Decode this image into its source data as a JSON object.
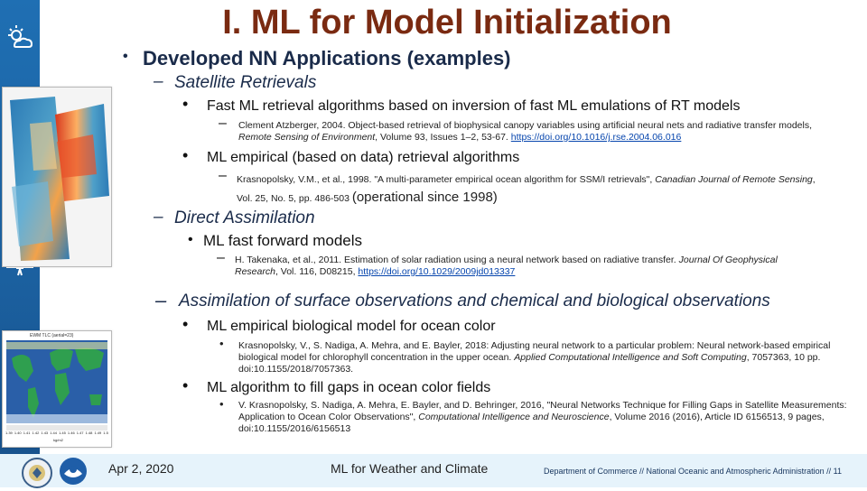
{
  "title": "I. ML for Model Initialization",
  "icons": {
    "weather": "sun-cloud-icon",
    "satellite": "satellite-icon",
    "fish": "fish-icon"
  },
  "colors": {
    "title": "#7a2a11",
    "sidebar": "#1f6fb3",
    "footer": "#e6f3fb",
    "link": "#0645ad"
  },
  "body": {
    "l1": {
      "bullet": "•",
      "text": "Developed NN Applications (examples)"
    },
    "sat": {
      "dash": "–",
      "text": "Satellite Retrievals",
      "b1": {
        "bullet": "•",
        "text": "Fast ML retrieval algorithms based on inversion of fast ML emulations of RT models",
        "ref_dash": "–",
        "ref_pre": "Clement Atzberger, 2004. Object-based retrieval of biophysical canopy variables using artificial neural nets and radiative transfer models, ",
        "ref_journal": "Remote Sensing of Environment",
        "ref_post": ", Volume 93, Issues 1–2, 53-67. ",
        "ref_link": "https://doi.org/10.1016/j.rse.2004.06.016"
      },
      "b2": {
        "bullet": "•",
        "text": "ML empirical (based on data) retrieval algorithms",
        "ref_dash": "–",
        "ref_pre": "Krasnopolsky, V.M., et al., 1998. \"A multi-parameter empirical ocean algorithm for SSM/I retrievals\", ",
        "ref_journal": "Canadian Journal of Remote Sensing",
        "ref_post": ", Vol. 25, No. 5, pp. 486-503 ",
        "ref_tail": "(operational since 1998)"
      }
    },
    "da": {
      "dash": "–",
      "text": "Direct Assimilation",
      "b1": {
        "bullet": "•",
        "text": "ML fast forward models",
        "ref_dash": "–",
        "ref_pre": "H. Takenaka, et al., 2011. Estimation of solar radiation using a neural network based on radiative transfer. ",
        "ref_journal": "Journal Of Geophysical Research",
        "ref_post": ", Vol. 116, D08215, ",
        "ref_link": "https://doi.org/10.1029/2009jd013337"
      }
    },
    "surf": {
      "dash": "–",
      "text": "Assimilation of surface observations and chemical and biological observations",
      "b1": {
        "bullet": "•",
        "text": "ML empirical biological model for ocean color",
        "ref_bullet": "•",
        "ref_pre": "Krasnopolsky, V., S. Nadiga, A. Mehra, and E. Bayler, 2018: Adjusting neural network to a particular problem: Neural network-based empirical biological model for chlorophyll concentration in the upper ocean. ",
        "ref_journal": "Applied Computational Intelligence and Soft Computing",
        "ref_post": ", 7057363, 10 pp. doi:10.1155/2018/7057363."
      },
      "b2": {
        "bullet": "•",
        "text": "ML algorithm to fill gaps in ocean color fields",
        "ref_bullet": "•",
        "ref_pre": "V. Krasnopolsky, S. Nadiga, A. Mehra, E. Bayler, and D. Behringer, 2016, \"Neural Networks Technique for Filling Gaps in Satellite Measurements: Application to Ocean Color Observations\", ",
        "ref_journal": "Computational Intelligence and Neuroscience",
        "ref_post": ", Volume 2016 (2016), Article ID 6156513, 9 pages, doi:10.1155/2016/6156513"
      }
    }
  },
  "map_caption": "EWM TLC (aerial=23)",
  "colorbar_ticks": [
    "1.39",
    "1.40",
    "1.41",
    "1.42",
    "1.43",
    "1.44",
    "1.45",
    "1.46",
    "1.47",
    "1.48",
    "1.49",
    "1.5"
  ],
  "colorbar_label": "kg/m2",
  "footer": {
    "date": "Apr 2, 2020",
    "center": "ML for Weather and Climate",
    "right": "Department of Commerce // National Oceanic and Atmospheric Administration // 11"
  }
}
